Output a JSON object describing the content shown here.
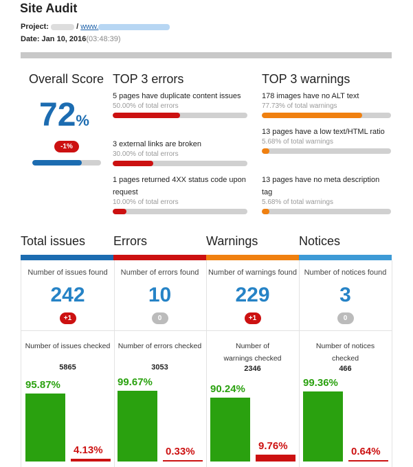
{
  "header": {
    "title": "Site Audit",
    "project_label": "Project:",
    "project_sep": " / ",
    "project_url_prefix": "www.",
    "date_label": "Date: Jan 10, 2016",
    "date_time": "(03:48:39)"
  },
  "overall": {
    "title": "Overall Score",
    "score": "72",
    "unit": "%",
    "change": "-1%",
    "progress": 0.72
  },
  "top_errors": {
    "title": "TOP 3 errors",
    "items": [
      {
        "text": "5 pages have duplicate content issues",
        "pct_label": "50.00% of total errors",
        "fraction": 0.5
      },
      {
        "text": "3 external links are broken",
        "pct_label": "30.00% of total errors",
        "fraction": 0.3
      },
      {
        "text": "1 pages returned 4XX status code upon request",
        "pct_label": "10.00% of total errors",
        "fraction": 0.1
      }
    ]
  },
  "top_warnings": {
    "title": "TOP 3 warnings",
    "items": [
      {
        "text": "178 images have no ALT text",
        "pct_label": "77.73% of total warnings",
        "fraction": 0.7773
      },
      {
        "text": "13 pages have a low text/HTML ratio",
        "pct_label": "5.68% of total warnings",
        "fraction": 0.0568
      },
      {
        "text": "13 pages have no meta description tag",
        "pct_label": "5.68% of total warnings",
        "fraction": 0.0568
      }
    ]
  },
  "sections": [
    {
      "title": "Total issues",
      "color": "#1c6cb1",
      "found_label": "Number of issues found",
      "found": "242",
      "delta": "+1",
      "delta_type": "red",
      "checked_label": "Number of issues checked",
      "checked": "5865",
      "ok_pct": "95.87%",
      "ok": 95.87,
      "bad_pct": "4.13%",
      "bad": 4.13
    },
    {
      "title": "Errors",
      "color": "#cc1111",
      "found_label": "Number of errors found",
      "found": "10",
      "delta": "0",
      "delta_type": "gray",
      "checked_label": "Number of errors checked",
      "checked": "3053",
      "ok_pct": "99.67%",
      "ok": 99.67,
      "bad_pct": "0.33%",
      "bad": 0.33
    },
    {
      "title": "Warnings",
      "color": "#f08010",
      "found_label": "Number of warnings found",
      "found": "229",
      "delta": "+1",
      "delta_type": "red",
      "checked_label": "Number of warnings checked",
      "checked": "2346",
      "ok_pct": "90.24%",
      "ok": 90.24,
      "bad_pct": "9.76%",
      "bad": 9.76
    },
    {
      "title": "Notices",
      "color": "#3d9ad6",
      "found_label": "Number of notices found",
      "found": "3",
      "delta": "0",
      "delta_type": "gray",
      "checked_label": "Number of notices checked",
      "checked": "466",
      "ok_pct": "99.36%",
      "ok": 99.36,
      "bad_pct": "0.64%",
      "bad": 0.64
    }
  ],
  "colors": {
    "blue": "#1c6cb1",
    "red": "#cc1111",
    "orange": "#f08010",
    "green": "#2aa10f",
    "track": "#d0d0d0"
  }
}
